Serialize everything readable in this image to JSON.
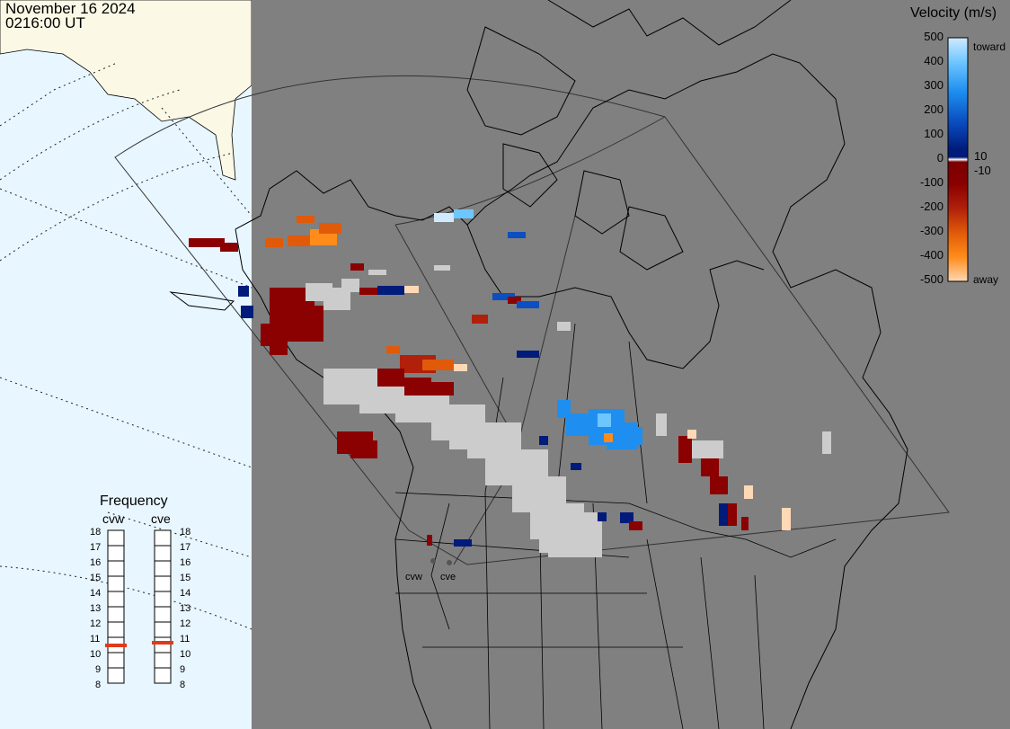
{
  "header": {
    "date": "November 16 2024",
    "time": "0216:00 UT"
  },
  "colorbar": {
    "title": "Velocity (m/s)",
    "ticks": [
      "500",
      "400",
      "300",
      "200",
      "100",
      "0",
      "-100",
      "-200",
      "-300",
      "-400",
      "-500"
    ],
    "inner_ticks": [
      "10",
      "-10"
    ],
    "toward_label": "toward",
    "away_label": "away",
    "gradient_colors": [
      "#cfeaff",
      "#6ec6ff",
      "#1e8ff0",
      "#0b4fc2",
      "#001b7a",
      "#ffffff",
      "#7a0000",
      "#b0200a",
      "#e05a0a",
      "#ff8c1a",
      "#ffd8b5"
    ]
  },
  "frequency_panel": {
    "title": "Frequency",
    "radars": [
      {
        "name": "cvw",
        "value_mhz": 10.5
      },
      {
        "name": "cve",
        "value_mhz": 10.6
      }
    ],
    "ticks": [
      "18",
      "17",
      "16",
      "15",
      "14",
      "13",
      "12",
      "11",
      "10",
      "9",
      "8"
    ],
    "indicator_color": "#e03a1a"
  },
  "map": {
    "ocean_color": "#e8f6ff",
    "land_fov_color": "#808080",
    "ice_color": "#fbf8e6",
    "sites": [
      {
        "name": "cvw"
      },
      {
        "name": "cve"
      }
    ]
  }
}
